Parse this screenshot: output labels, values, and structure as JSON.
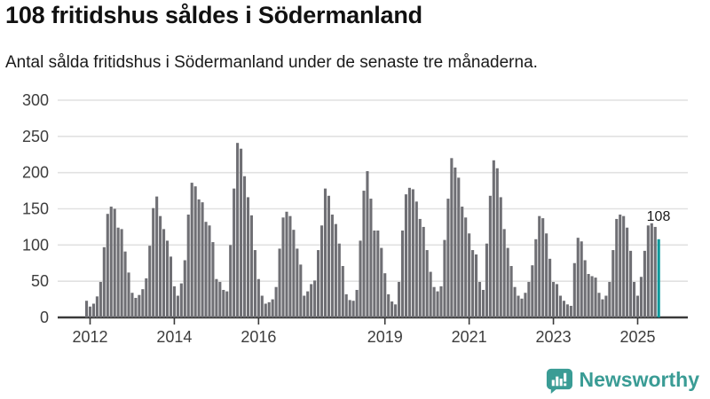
{
  "header": {
    "title": "108 fritidshus såldes i Södermanland",
    "subtitle": "Antal sålda fritidshus i Södermanland under de senaste tre månaderna."
  },
  "chart_data": {
    "type": "bar",
    "title": "108 fritidshus såldes i Södermanland",
    "subtitle": "Antal sålda fritidshus i Södermanland under de senaste tre månaderna.",
    "unit": "fritidshus per månad",
    "start_month": "2011-12",
    "end_month": "2025-07",
    "values": [
      23,
      15,
      19,
      29,
      49,
      97,
      143,
      153,
      150,
      124,
      122,
      91,
      62,
      34,
      27,
      31,
      39,
      54,
      99,
      151,
      167,
      140,
      122,
      106,
      84,
      43,
      30,
      47,
      79,
      142,
      186,
      181,
      163,
      159,
      132,
      127,
      104,
      53,
      49,
      38,
      36,
      100,
      178,
      241,
      233,
      195,
      166,
      141,
      93,
      53,
      30,
      19,
      21,
      25,
      42,
      95,
      138,
      146,
      140,
      121,
      95,
      73,
      30,
      36,
      46,
      51,
      93,
      127,
      178,
      168,
      142,
      129,
      102,
      71,
      32,
      24,
      23,
      38,
      106,
      175,
      202,
      164,
      120,
      120,
      96,
      61,
      32,
      22,
      18,
      49,
      120,
      170,
      179,
      177,
      160,
      136,
      125,
      93,
      63,
      42,
      36,
      43,
      107,
      164,
      220,
      207,
      193,
      153,
      138,
      116,
      93,
      87,
      49,
      38,
      102,
      168,
      217,
      206,
      166,
      122,
      96,
      71,
      42,
      30,
      26,
      34,
      49,
      72,
      108,
      140,
      137,
      116,
      81,
      49,
      46,
      30,
      23,
      18,
      16,
      75,
      110,
      105,
      79,
      60,
      57,
      55,
      34,
      25,
      30,
      49,
      93,
      136,
      142,
      140,
      124,
      92,
      49,
      30,
      56,
      92,
      127,
      130,
      125,
      108
    ],
    "highlight_last_value": 108,
    "last_value_label": "108",
    "ylim": [
      0,
      300
    ],
    "y_ticks": [
      0,
      50,
      100,
      150,
      200,
      250,
      300
    ],
    "x_tick_years": [
      "2012",
      "2014",
      "2016",
      "2019",
      "2021",
      "2023",
      "2025"
    ],
    "grid": "horizontal",
    "legend": "none",
    "bar_color": "#6f6f74",
    "highlight_color": "#0d9a9c",
    "grid_color": "#e1e1e1",
    "axis_color": "#3a3a3a",
    "tick_label_color": "#3d3d3d"
  },
  "footer": {
    "brand": "Newsworthy",
    "logo_icon": "bar-chart-speech-bubble-icon",
    "brand_color": "#3a9c95"
  }
}
